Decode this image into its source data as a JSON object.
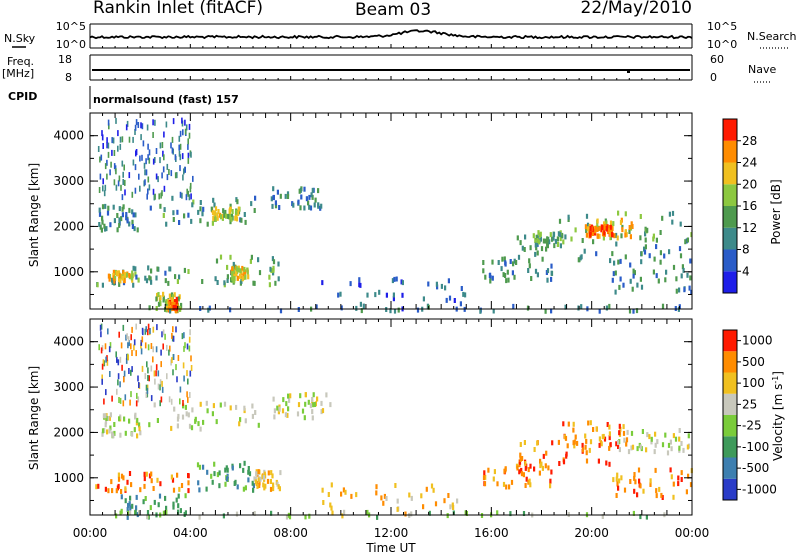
{
  "header": {
    "station": "Rankin Inlet (fitACF)",
    "beam": "Beam 03",
    "date": "22/May/2010"
  },
  "strips": {
    "nsky_label": "N.Sky",
    "nsky_top_tick": "10^5",
    "nsky_bottom_tick": "10^0",
    "nsearch_label": "N.Search",
    "nsearch_top_tick": "10^5",
    "nsearch_bottom_tick": "10^0",
    "freq_label": "Freq.",
    "freq_unit": "[MHz]",
    "freq_ticks": [
      "18",
      "8"
    ],
    "nave_label": "Nave",
    "nave_ticks": [
      "60",
      "0"
    ],
    "cpid_label": "CPID",
    "cpid_text": "normalsound (fast) 157"
  },
  "chart_data": [
    {
      "type": "heatmap",
      "name": "power",
      "title": "",
      "xlabel": "Time UT",
      "ylabel": "Slant Range [km]",
      "xlim": [
        0,
        24
      ],
      "ylim": [
        180,
        4500
      ],
      "x_ticks": [
        "00:00",
        "04:00",
        "08:00",
        "12:00",
        "16:00",
        "20:00",
        "00:00"
      ],
      "y_ticks": [
        "1000",
        "2000",
        "3000",
        "4000"
      ],
      "colorbar_label": "Power [dB]",
      "colorbar_ticks": [
        "28",
        "24",
        "20",
        "16",
        "12",
        "8",
        "4"
      ],
      "colorbar_range": [
        0,
        30
      ],
      "colors": [
        "#1e1ee8",
        "#2a5cc8",
        "#3d8a8a",
        "#4e9a4e",
        "#8cc840",
        "#f0c020",
        "#ff8c00",
        "#ff1a00"
      ],
      "regions": [
        {
          "t0": 0.3,
          "t1": 2.0,
          "r0": 1950,
          "r1": 2500,
          "p": 10
        },
        {
          "t0": 2.3,
          "t1": 6.7,
          "r0": 2100,
          "r1": 2700,
          "p": 11
        },
        {
          "t0": 4.8,
          "t1": 5.9,
          "r0": 2150,
          "r1": 2450,
          "p": 18
        },
        {
          "t0": 7.2,
          "t1": 9.4,
          "r0": 2450,
          "r1": 2900,
          "p": 9
        },
        {
          "t0": 0.2,
          "t1": 3.9,
          "r0": 750,
          "r1": 1150,
          "p": 12
        },
        {
          "t0": 0.7,
          "t1": 1.7,
          "r0": 850,
          "r1": 1050,
          "p": 20
        },
        {
          "t0": 4.2,
          "t1": 7.6,
          "r0": 750,
          "r1": 1400,
          "p": 13
        },
        {
          "t0": 5.6,
          "t1": 6.3,
          "r0": 900,
          "r1": 1150,
          "p": 20
        },
        {
          "t0": 2.6,
          "t1": 3.6,
          "r0": 180,
          "r1": 560,
          "p": 17
        },
        {
          "t0": 3.1,
          "t1": 3.45,
          "r0": 180,
          "r1": 450,
          "p": 26
        },
        {
          "t0": 15.6,
          "t1": 18.5,
          "r0": 850,
          "r1": 1350,
          "p": 10
        },
        {
          "t0": 17.0,
          "t1": 24.0,
          "r0": 1300,
          "r1": 1850,
          "p": 10
        },
        {
          "t0": 17.5,
          "t1": 18.8,
          "r0": 1550,
          "r1": 1950,
          "p": 13
        },
        {
          "t0": 18.6,
          "t1": 24.0,
          "r0": 1700,
          "r1": 2350,
          "p": 13
        },
        {
          "t0": 19.7,
          "t1": 21.6,
          "r0": 1800,
          "r1": 2200,
          "p": 22
        },
        {
          "t0": 19.9,
          "t1": 20.8,
          "r0": 1850,
          "r1": 2050,
          "p": 27
        },
        {
          "t0": 20.7,
          "t1": 24.0,
          "r0": 600,
          "r1": 1300,
          "p": 9
        },
        {
          "t0": 9.2,
          "t1": 15.0,
          "r0": 180,
          "r1": 900,
          "p": 6
        },
        {
          "t0": 0.2,
          "t1": 24.0,
          "r0": 180,
          "r1": 300,
          "p": 8
        }
      ]
    },
    {
      "type": "heatmap",
      "name": "velocity",
      "title": "",
      "xlabel": "Time UT",
      "ylabel": "Slant Range [km]",
      "xlim": [
        0,
        24
      ],
      "ylim": [
        180,
        4500
      ],
      "x_ticks": [
        "00:00",
        "04:00",
        "08:00",
        "12:00",
        "16:00",
        "20:00",
        "00:00"
      ],
      "y_ticks": [
        "1000",
        "2000",
        "3000",
        "4000"
      ],
      "colorbar_label": "Velocity [m s^-1]",
      "colorbar_ticks": [
        "1000",
        "500",
        "100",
        "25",
        "-25",
        "-100",
        "-500",
        "-1000"
      ],
      "colors": [
        "#2a3cc8",
        "#3d7fb0",
        "#3e9a5a",
        "#7acc3a",
        "#c8c8bc",
        "#f0c020",
        "#ff8c00",
        "#ff1a00"
      ],
      "regions": [
        {
          "t0": 0.3,
          "t1": 2.0,
          "r0": 1950,
          "r1": 2450,
          "v": 4
        },
        {
          "t0": 2.3,
          "t1": 6.7,
          "r0": 2100,
          "r1": 2700,
          "v": 4
        },
        {
          "t0": 7.2,
          "t1": 9.6,
          "r0": 2350,
          "r1": 2900,
          "v": 4
        },
        {
          "t0": 0.2,
          "t1": 3.9,
          "r0": 750,
          "r1": 1150,
          "v": 6
        },
        {
          "t0": 4.2,
          "t1": 6.5,
          "r0": 750,
          "r1": 1400,
          "v": 2
        },
        {
          "t0": 6.5,
          "t1": 7.6,
          "r0": 800,
          "r1": 1200,
          "v": 5
        },
        {
          "t0": 1.2,
          "t1": 3.8,
          "r0": 180,
          "r1": 700,
          "v": 2
        },
        {
          "t0": 15.6,
          "t1": 18.5,
          "r0": 850,
          "r1": 1350,
          "v": 6
        },
        {
          "t0": 17.0,
          "t1": 21.0,
          "r0": 1300,
          "r1": 1850,
          "v": 6
        },
        {
          "t0": 18.7,
          "t1": 21.4,
          "r0": 1700,
          "r1": 2300,
          "v": 6
        },
        {
          "t0": 21.0,
          "t1": 24.0,
          "r0": 1600,
          "r1": 2100,
          "v": 4
        },
        {
          "t0": 20.7,
          "t1": 24.0,
          "r0": 600,
          "r1": 1300,
          "v": 6
        },
        {
          "t0": 9.2,
          "t1": 15.0,
          "r0": 180,
          "r1": 900,
          "v": 5
        },
        {
          "t0": 0.2,
          "t1": 24.0,
          "r0": 180,
          "r1": 300,
          "v": 3
        }
      ]
    }
  ]
}
